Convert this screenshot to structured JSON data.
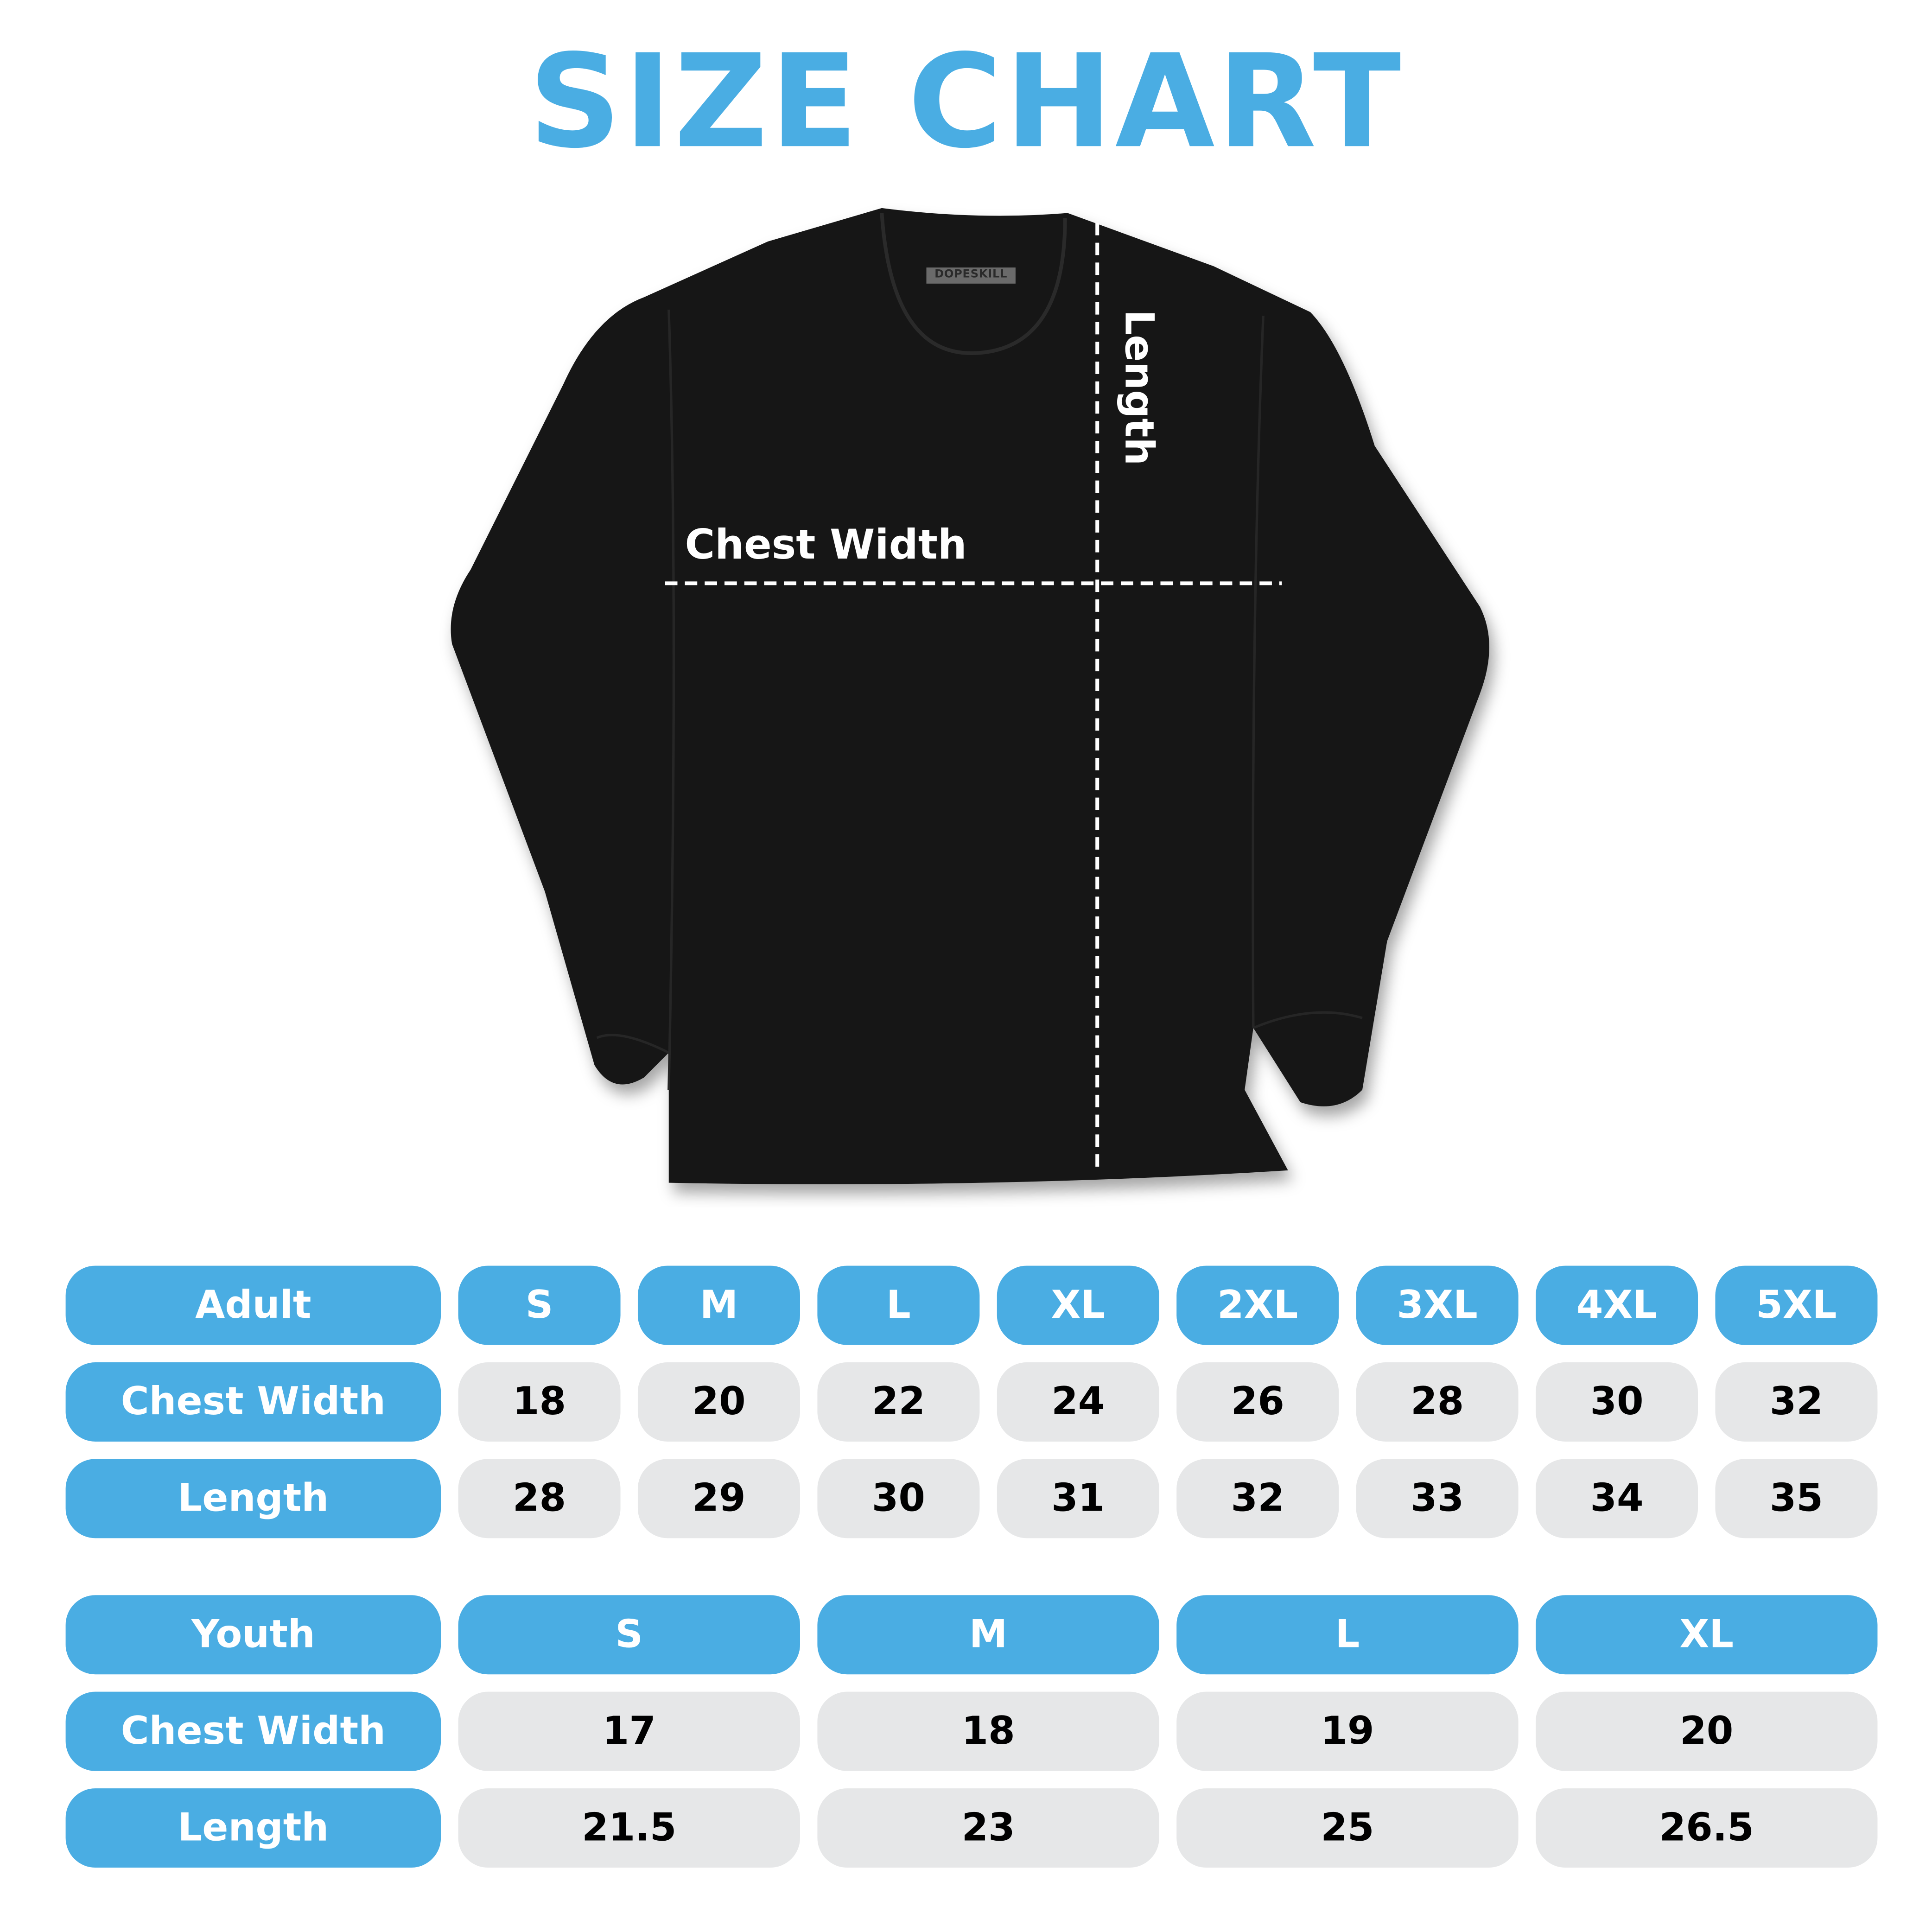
{
  "title": "SIZE CHART",
  "colors": {
    "accent": "#4aade3",
    "cell_bg": "#e6e7e8",
    "shirt": "#141414"
  },
  "shirt": {
    "brand_tag": "DOPESKILL",
    "chest_label": "Chest Width",
    "length_label": "Length"
  },
  "adult": {
    "header": "Adult",
    "sizes": [
      "S",
      "M",
      "L",
      "XL",
      "2XL",
      "3XL",
      "4XL",
      "5XL"
    ],
    "rows": [
      {
        "label": "Chest Width",
        "values": [
          "18",
          "20",
          "22",
          "24",
          "26",
          "28",
          "30",
          "32"
        ]
      },
      {
        "label": "Length",
        "values": [
          "28",
          "29",
          "30",
          "31",
          "32",
          "33",
          "34",
          "35"
        ]
      }
    ]
  },
  "youth": {
    "header": "Youth",
    "sizes": [
      "S",
      "M",
      "L",
      "XL"
    ],
    "rows": [
      {
        "label": "Chest Width",
        "values": [
          "17",
          "18",
          "19",
          "20"
        ]
      },
      {
        "label": "Length",
        "values": [
          "21.5",
          "23",
          "25",
          "26.5"
        ]
      }
    ]
  }
}
